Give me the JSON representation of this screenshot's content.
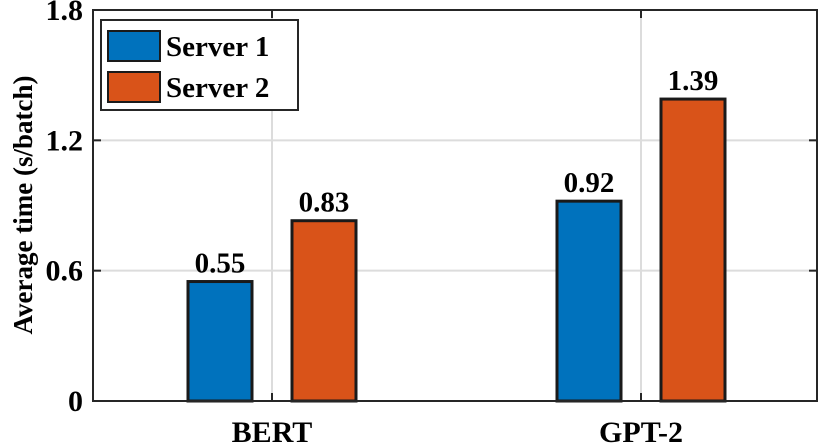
{
  "chart_data": {
    "type": "bar",
    "categories": [
      "BERT",
      "GPT-2"
    ],
    "series": [
      {
        "name": "Server 1",
        "values": [
          0.55,
          0.92
        ],
        "color": "#0072BD"
      },
      {
        "name": "Server 2",
        "values": [
          0.83,
          1.39
        ],
        "color": "#D95319"
      }
    ],
    "data_labels": [
      [
        "0.55",
        "0.92"
      ],
      [
        "0.83",
        "1.39"
      ]
    ],
    "ylabel": "Average time (s/batch)",
    "ylim": [
      0,
      1.8
    ],
    "yticks": [
      0,
      0.6,
      1.2,
      1.8
    ],
    "ytick_labels": [
      "0",
      "0.6",
      "1.2",
      "1.8"
    ],
    "grid": true,
    "legend_position": "top-left"
  }
}
